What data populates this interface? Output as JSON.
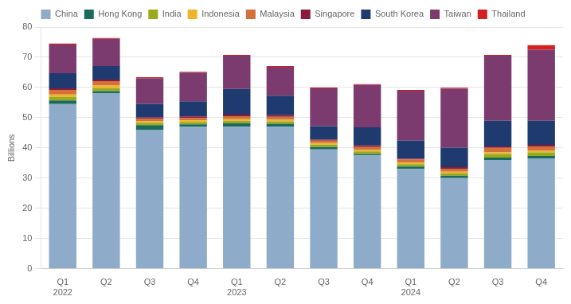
{
  "chart_data": {
    "type": "bar",
    "stacked": true,
    "grid": true,
    "legend": "top",
    "ylabel": "Billions",
    "categories": [
      "Q1\n2022",
      "Q2",
      "Q3",
      "Q4",
      "Q1\n2023",
      "Q2",
      "Q3",
      "Q4",
      "Q1\n2024",
      "Q2",
      "Q3",
      "Q4"
    ],
    "series": [
      {
        "name": "China",
        "color": "#8eabc9",
        "values": [
          54.5,
          58.0,
          46.0,
          47.0,
          47.0,
          47.0,
          39.5,
          37.5,
          33.0,
          30.0,
          36.0,
          36.5
        ]
      },
      {
        "name": "Hong Kong",
        "color": "#1a6b5c",
        "values": [
          1.2,
          0.8,
          1.5,
          0.8,
          1.2,
          1.0,
          0.8,
          0.5,
          0.8,
          0.8,
          0.8,
          0.8
        ]
      },
      {
        "name": "India",
        "color": "#9aaa1a",
        "values": [
          1.2,
          1.0,
          0.8,
          0.8,
          0.8,
          0.8,
          0.8,
          0.8,
          0.8,
          0.8,
          1.2,
          1.2
        ]
      },
      {
        "name": "Indonesia",
        "color": "#f0b429",
        "values": [
          0.8,
          0.8,
          0.5,
          0.5,
          0.5,
          0.5,
          0.5,
          0.5,
          0.5,
          0.5,
          0.5,
          0.5
        ]
      },
      {
        "name": "Malaysia",
        "color": "#d4703a",
        "values": [
          1.5,
          1.5,
          0.8,
          0.8,
          1.0,
          1.0,
          0.8,
          1.0,
          1.0,
          1.0,
          1.5,
          1.5
        ]
      },
      {
        "name": "Singapore",
        "color": "#8b1a3a",
        "values": [
          0.5,
          0.5,
          0.5,
          0.5,
          0.5,
          0.5,
          0.3,
          0.5,
          0.3,
          0.5,
          0.5,
          0.5
        ]
      },
      {
        "name": "South Korea",
        "color": "#1e3a6e",
        "values": [
          5.0,
          4.5,
          4.5,
          5.0,
          8.5,
          6.5,
          4.5,
          6.0,
          6.0,
          6.5,
          8.5,
          8.0
        ]
      },
      {
        "name": "Taiwan",
        "color": "#7b3b6e",
        "values": [
          9.5,
          9.0,
          8.5,
          9.5,
          11.0,
          9.5,
          12.5,
          14.0,
          16.5,
          19.5,
          21.5,
          23.5
        ]
      },
      {
        "name": "Thailand",
        "color": "#d42020",
        "values": [
          0.3,
          0.3,
          0.3,
          0.3,
          0.3,
          0.3,
          0.3,
          0.3,
          0.3,
          0.3,
          0.3,
          1.5
        ]
      }
    ],
    "ylim": [
      0,
      80
    ],
    "yticks": [
      0,
      10,
      20,
      30,
      40,
      50,
      60,
      70,
      80
    ]
  }
}
